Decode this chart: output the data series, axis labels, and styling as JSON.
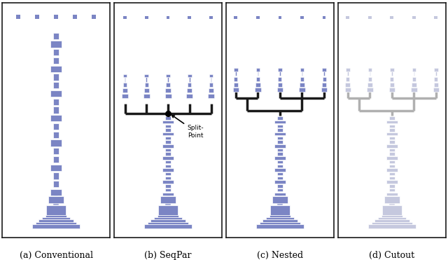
{
  "fig_width": 6.4,
  "fig_height": 3.71,
  "bg_color": "#ffffff",
  "panel_border": "#1a1a1a",
  "trunk_color": "#7b85c4",
  "trunk_color_faded": "#c5c8de",
  "branch_color": "#1a1a1a",
  "branch_color_faded": "#b0b0b0",
  "dot_color": "#7b85c4",
  "dot_color_faded": "#c5c8de",
  "caption_fontsize": 9,
  "panel_labels": [
    "(a) Conventional",
    "(b) SeqPar",
    "(c) Nested",
    "(d) Cutout"
  ]
}
